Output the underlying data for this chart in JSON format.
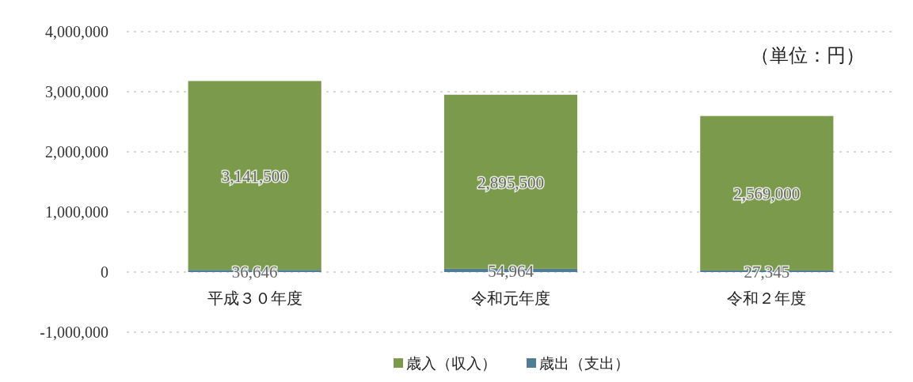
{
  "chart_data": {
    "type": "bar",
    "stacked": true,
    "categories": [
      "平成３０年度",
      "令和元年度",
      "令和２年度"
    ],
    "series": [
      {
        "name": "歳出（支出）",
        "color": "#4f7d96",
        "values": [
          36646,
          54964,
          27345
        ],
        "value_labels": [
          "36,646",
          "54,964",
          "27,345"
        ]
      },
      {
        "name": "歳入（収入）",
        "color": "#7c9a4c",
        "values": [
          3141500,
          2895500,
          2569000
        ],
        "value_labels": [
          "3,141,500",
          "2,895,500",
          "2,569,000"
        ]
      }
    ],
    "ylim": [
      -1000000,
      4000000
    ],
    "yticks": [
      {
        "value": -1000000,
        "label": "-1,000,000"
      },
      0,
      {
        "value": 1000000,
        "label": "1,000,000"
      },
      {
        "value": 2000000,
        "label": "2,000,000"
      },
      {
        "value": 3000000,
        "label": "3,000,000"
      },
      {
        "value": 4000000,
        "label": "4,000,000"
      }
    ],
    "grid": "y",
    "legend": "bottom",
    "annotations": [
      "（単位：円）"
    ]
  }
}
